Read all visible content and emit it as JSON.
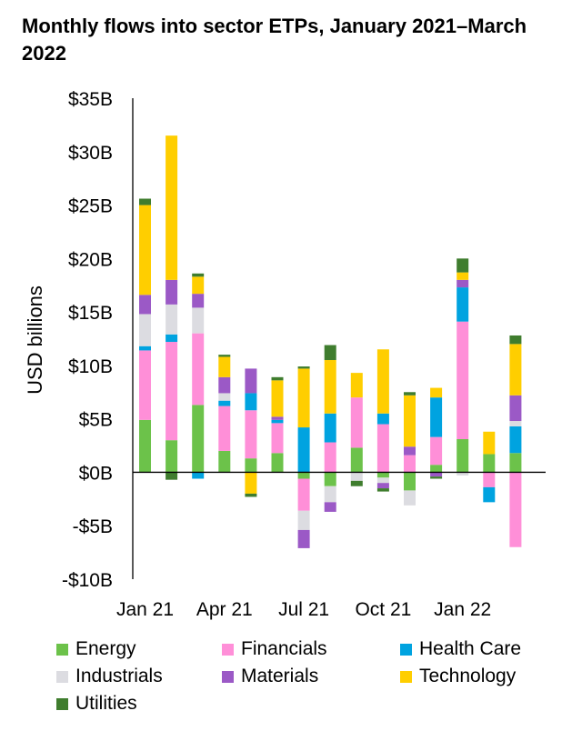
{
  "chart_data": {
    "type": "bar",
    "stacked": true,
    "title": "Monthly flows into sector ETPs, January 2021–March 2022",
    "ylabel": "USD billions",
    "xlabel": "",
    "ylim": [
      -10,
      35
    ],
    "yticks": [
      35,
      30,
      25,
      20,
      15,
      10,
      5,
      0,
      -5,
      -10
    ],
    "ytick_labels": [
      "$35B",
      "$30B",
      "$25B",
      "$20B",
      "$15B",
      "$10B",
      "$5B",
      "$0B",
      "-$5B",
      "-$10B"
    ],
    "categories": [
      "Jan 21",
      "Feb 21",
      "Mar 21",
      "Apr 21",
      "May 21",
      "Jun 21",
      "Jul 21",
      "Aug 21",
      "Sep 21",
      "Oct 21",
      "Nov 21",
      "Dec 21",
      "Jan 22",
      "Feb 22",
      "Mar 22"
    ],
    "xtick_labels": [
      {
        "label": "Jan 21",
        "index": 0
      },
      {
        "label": "Apr 21",
        "index": 3
      },
      {
        "label": "Jul 21",
        "index": 6
      },
      {
        "label": "Oct 21",
        "index": 9
      },
      {
        "label": "Jan 22",
        "index": 12
      }
    ],
    "gridlines": false,
    "legend_position": "bottom",
    "series": [
      {
        "name": "Energy",
        "color": "#6CC24A",
        "values": [
          4.9,
          3.0,
          6.3,
          2.0,
          1.3,
          1.8,
          -0.6,
          -1.3,
          2.3,
          -0.5,
          -1.7,
          0.7,
          3.1,
          1.7,
          1.8
        ]
      },
      {
        "name": "Financials",
        "color": "#FF8FD8",
        "values": [
          6.5,
          9.2,
          6.7,
          4.2,
          4.5,
          2.8,
          -3.0,
          2.8,
          4.7,
          4.5,
          1.6,
          2.6,
          11.0,
          -1.4,
          -7.0
        ]
      },
      {
        "name": "Health Care",
        "color": "#00A3E0",
        "values": [
          0.4,
          0.7,
          -0.6,
          0.5,
          1.6,
          0.3,
          4.2,
          2.7,
          0.0,
          1.0,
          0.0,
          3.7,
          3.2,
          -1.4,
          2.5
        ]
      },
      {
        "name": "Industrials",
        "color": "#DCDCE1",
        "values": [
          3.0,
          2.8,
          2.4,
          0.7,
          0.0,
          0.0,
          -1.8,
          -1.5,
          -0.8,
          -0.5,
          -1.4,
          0.0,
          -0.3,
          0.0,
          0.5
        ]
      },
      {
        "name": "Materials",
        "color": "#9B59C6",
        "values": [
          1.8,
          2.3,
          1.3,
          1.5,
          2.3,
          0.3,
          -1.7,
          -0.9,
          0.0,
          -0.5,
          0.8,
          -0.4,
          0.7,
          0.0,
          2.4
        ]
      },
      {
        "name": "Technology",
        "color": "#FFCE00",
        "values": [
          8.4,
          13.5,
          1.6,
          1.9,
          -2.0,
          3.4,
          5.5,
          5.0,
          2.3,
          6.0,
          4.8,
          0.9,
          0.7,
          2.1,
          4.8
        ]
      },
      {
        "name": "Utilities",
        "color": "#3F7D2E",
        "values": [
          0.6,
          -0.7,
          0.3,
          0.2,
          -0.3,
          0.3,
          0.2,
          1.4,
          -0.5,
          -0.3,
          0.3,
          -0.2,
          1.3,
          0.0,
          0.8
        ]
      }
    ]
  }
}
